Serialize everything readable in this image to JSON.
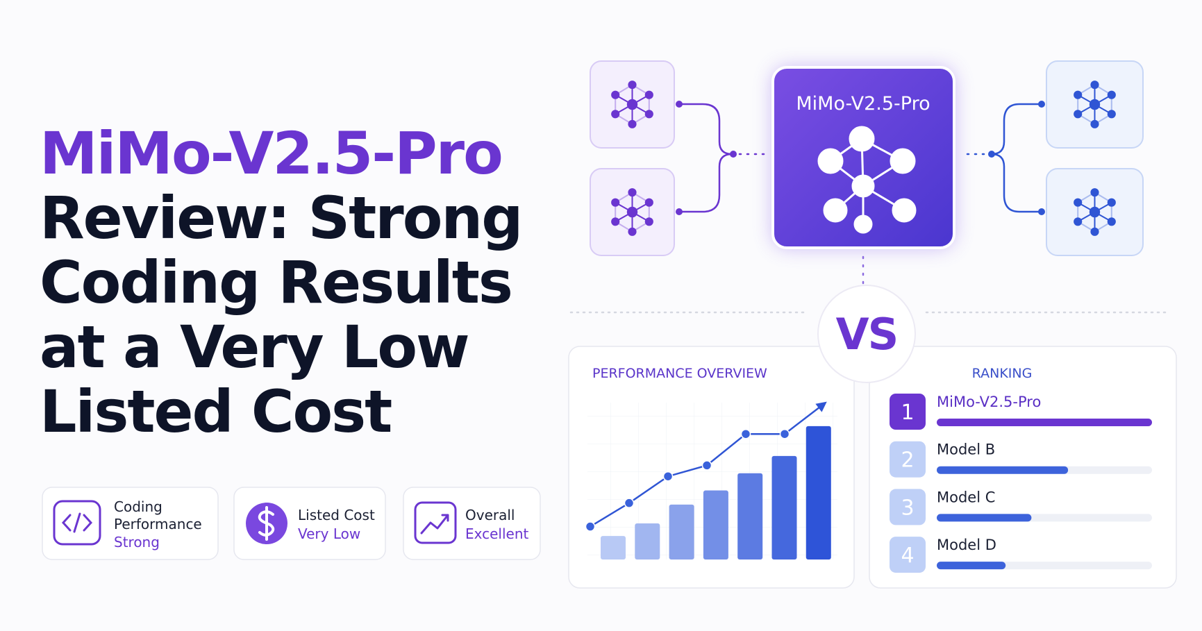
{
  "title": {
    "highlight": "MiMo-V2.5-Pro",
    "lines": [
      "Review: Strong",
      "Coding Results",
      "at a Very Low",
      "Listed Cost"
    ]
  },
  "badges": [
    {
      "label": [
        "Coding",
        "Performance"
      ],
      "value": "Strong"
    },
    {
      "label": [
        "Listed Cost"
      ],
      "value": "Very Low"
    },
    {
      "label": [
        "Overall"
      ],
      "value": "Excellent"
    }
  ],
  "diagram": {
    "center": "MiMo-V2.5-Pro",
    "vs": "VS"
  },
  "performance": {
    "type": "bar",
    "title": "PERFORMANCE OVERVIEW",
    "values": [
      15,
      23,
      35,
      44,
      55,
      66,
      85
    ],
    "line": [
      21,
      36,
      53,
      60,
      80,
      80,
      99
    ],
    "ylim": [
      0,
      100
    ]
  },
  "ranking": {
    "title": "RANKING",
    "xlim": [
      0,
      100
    ],
    "items": [
      {
        "rank": 1,
        "name": "MiMo-V2.5-Pro",
        "score": 100
      },
      {
        "rank": 2,
        "name": "Model B",
        "score": 61
      },
      {
        "rank": 3,
        "name": "Model C",
        "score": 44
      },
      {
        "rank": 4,
        "name": "Model D",
        "score": 32
      }
    ]
  }
}
